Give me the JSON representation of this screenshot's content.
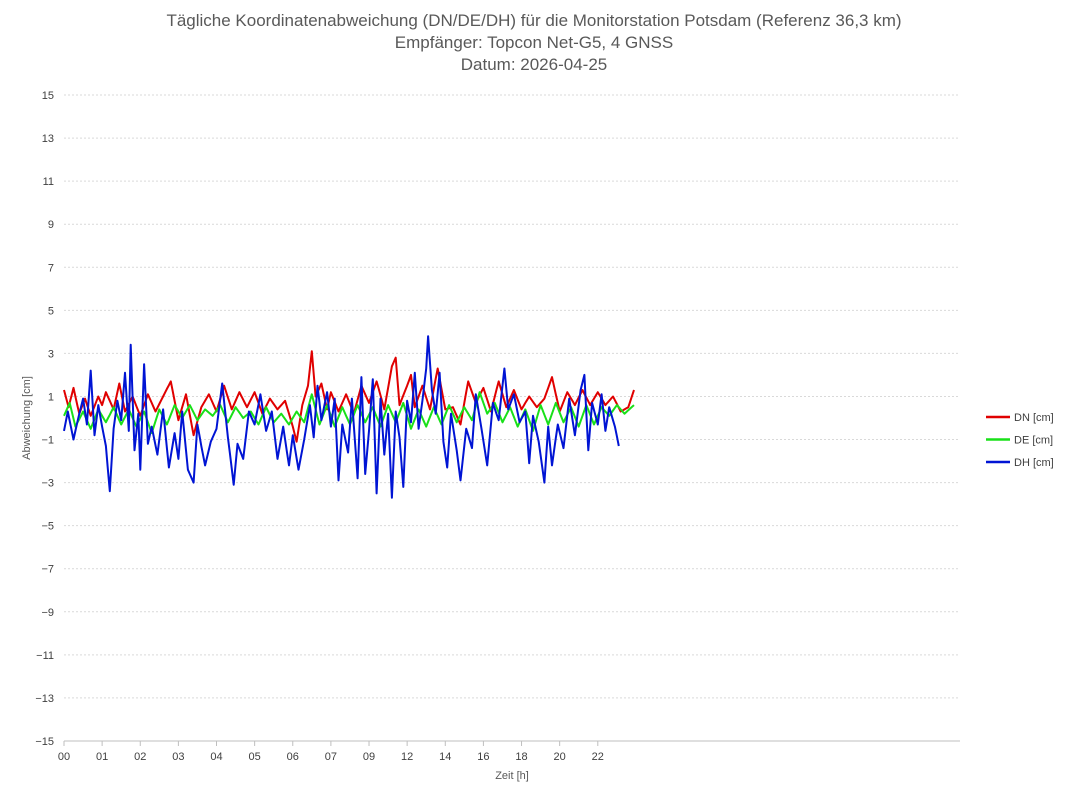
{
  "chart_data": {
    "type": "line",
    "title": "Tägliche Koordinatenabweichung (DN/DE/DH) für die Monitorstation Potsdam (Referenz 36,3 km)",
    "subtitle": "Empfänger: Topcon Net-G5, 4 GNSS",
    "subtitle2": "Datum: 2026-04-25",
    "xlabel": "Zeit [h]",
    "ylabel": "Abweichung [cm]",
    "xlim": [
      0,
      23.5
    ],
    "ylim": [
      -15,
      15
    ],
    "yticks": [
      -15,
      -13,
      -11,
      -9,
      -7,
      -5,
      -3,
      -1,
      1,
      3,
      5,
      7,
      9,
      11,
      13,
      15
    ],
    "xticks": [
      {
        "value": 0,
        "label": "00"
      },
      {
        "value": 1,
        "label": "01"
      },
      {
        "value": 2,
        "label": "02"
      },
      {
        "value": 3,
        "label": "03"
      },
      {
        "value": 4,
        "label": "04"
      },
      {
        "value": 5,
        "label": "05"
      },
      {
        "value": 6,
        "label": "06"
      },
      {
        "value": 7,
        "label": "07"
      },
      {
        "value": 8,
        "label": "09"
      },
      {
        "value": 9,
        "label": "12"
      },
      {
        "value": 10,
        "label": "14"
      },
      {
        "value": 11,
        "label": "16"
      },
      {
        "value": 12,
        "label": "18"
      },
      {
        "value": 13,
        "label": "20"
      },
      {
        "value": 14,
        "label": "22"
      }
    ],
    "grid": "horizontal-dotted",
    "legend": "right",
    "series": [
      {
        "name": "DN [cm]",
        "color": "#e00000",
        "anchors": [
          [
            0,
            1.3
          ],
          [
            0.12,
            0.5
          ],
          [
            0.25,
            1.4
          ],
          [
            0.4,
            0.2
          ],
          [
            0.55,
            0.9
          ],
          [
            0.7,
            0.1
          ],
          [
            0.9,
            1.0
          ],
          [
            1.0,
            0.6
          ],
          [
            1.1,
            1.2
          ],
          [
            1.3,
            0.4
          ],
          [
            1.45,
            1.6
          ],
          [
            1.6,
            0.3
          ],
          [
            1.8,
            1.0
          ],
          [
            2.0,
            0.1
          ],
          [
            2.2,
            1.1
          ],
          [
            2.4,
            0.3
          ],
          [
            2.6,
            1.0
          ],
          [
            2.8,
            1.7
          ],
          [
            3.0,
            -0.1
          ],
          [
            3.2,
            1.1
          ],
          [
            3.4,
            -0.8
          ],
          [
            3.6,
            0.5
          ],
          [
            3.8,
            1.1
          ],
          [
            4.0,
            0.3
          ],
          [
            4.2,
            1.5
          ],
          [
            4.4,
            0.4
          ],
          [
            4.6,
            1.2
          ],
          [
            4.8,
            0.5
          ],
          [
            5.0,
            1.2
          ],
          [
            5.2,
            0.2
          ],
          [
            5.4,
            0.9
          ],
          [
            5.6,
            0.4
          ],
          [
            5.8,
            0.8
          ],
          [
            6.0,
            -0.4
          ],
          [
            6.1,
            -1.1
          ],
          [
            6.25,
            0.6
          ],
          [
            6.4,
            1.5
          ],
          [
            6.5,
            3.1
          ],
          [
            6.6,
            1.0
          ],
          [
            6.75,
            1.6
          ],
          [
            6.9,
            0.4
          ],
          [
            7.0,
            1.2
          ],
          [
            7.2,
            0.3
          ],
          [
            7.4,
            1.1
          ],
          [
            7.6,
            0.2
          ],
          [
            7.8,
            1.5
          ],
          [
            8.0,
            0.7
          ],
          [
            8.2,
            1.7
          ],
          [
            8.4,
            0.4
          ],
          [
            8.6,
            2.4
          ],
          [
            8.7,
            2.8
          ],
          [
            8.8,
            0.6
          ],
          [
            9.0,
            1.5
          ],
          [
            9.1,
            2.0
          ],
          [
            9.2,
            0.5
          ],
          [
            9.4,
            1.5
          ],
          [
            9.6,
            0.4
          ],
          [
            9.8,
            2.3
          ],
          [
            10.0,
            0.4
          ],
          [
            10.2,
            0.5
          ],
          [
            10.4,
            -0.3
          ],
          [
            10.6,
            1.7
          ],
          [
            10.8,
            0.7
          ],
          [
            11.0,
            1.4
          ],
          [
            11.2,
            0.3
          ],
          [
            11.4,
            1.7
          ],
          [
            11.6,
            0.5
          ],
          [
            11.8,
            1.3
          ],
          [
            12.0,
            0.4
          ],
          [
            12.2,
            1.0
          ],
          [
            12.4,
            0.5
          ],
          [
            12.6,
            0.9
          ],
          [
            12.8,
            1.9
          ],
          [
            13.0,
            0.3
          ],
          [
            13.2,
            1.2
          ],
          [
            13.4,
            0.6
          ],
          [
            13.6,
            1.3
          ],
          [
            13.8,
            0.6
          ],
          [
            14.0,
            1.2
          ],
          [
            14.2,
            0.6
          ],
          [
            14.4,
            1.0
          ],
          [
            14.6,
            0.3
          ],
          [
            14.8,
            0.5
          ],
          [
            14.95,
            1.3
          ]
        ]
      },
      {
        "name": "DE [cm]",
        "color": "#19e019",
        "anchors": [
          [
            0,
            0.1
          ],
          [
            0.15,
            0.7
          ],
          [
            0.3,
            -0.4
          ],
          [
            0.5,
            0.3
          ],
          [
            0.7,
            -0.5
          ],
          [
            0.9,
            0.4
          ],
          [
            1.1,
            -0.2
          ],
          [
            1.3,
            0.5
          ],
          [
            1.5,
            -0.3
          ],
          [
            1.7,
            0.4
          ],
          [
            1.9,
            -0.4
          ],
          [
            2.1,
            0.3
          ],
          [
            2.3,
            -0.7
          ],
          [
            2.5,
            0.4
          ],
          [
            2.7,
            -0.3
          ],
          [
            2.9,
            0.6
          ],
          [
            3.1,
            0.0
          ],
          [
            3.3,
            0.6
          ],
          [
            3.5,
            -0.1
          ],
          [
            3.7,
            0.4
          ],
          [
            3.9,
            0.1
          ],
          [
            4.1,
            0.6
          ],
          [
            4.3,
            -0.2
          ],
          [
            4.5,
            0.5
          ],
          [
            4.7,
            0.0
          ],
          [
            4.9,
            0.3
          ],
          [
            5.1,
            -0.3
          ],
          [
            5.3,
            0.5
          ],
          [
            5.5,
            -0.2
          ],
          [
            5.7,
            0.2
          ],
          [
            5.9,
            -0.3
          ],
          [
            6.1,
            0.3
          ],
          [
            6.3,
            -0.2
          ],
          [
            6.5,
            1.1
          ],
          [
            6.7,
            -0.3
          ],
          [
            6.9,
            0.6
          ],
          [
            7.1,
            -0.4
          ],
          [
            7.3,
            0.5
          ],
          [
            7.5,
            -0.3
          ],
          [
            7.7,
            0.6
          ],
          [
            7.9,
            -0.2
          ],
          [
            8.1,
            0.5
          ],
          [
            8.3,
            -0.4
          ],
          [
            8.5,
            0.6
          ],
          [
            8.7,
            -0.2
          ],
          [
            8.9,
            0.7
          ],
          [
            9.1,
            -0.5
          ],
          [
            9.3,
            0.4
          ],
          [
            9.5,
            -0.4
          ],
          [
            9.7,
            0.5
          ],
          [
            9.9,
            -0.3
          ],
          [
            10.1,
            0.6
          ],
          [
            10.3,
            -0.2
          ],
          [
            10.5,
            0.5
          ],
          [
            10.7,
            -0.1
          ],
          [
            10.9,
            1.2
          ],
          [
            11.1,
            0.2
          ],
          [
            11.3,
            0.7
          ],
          [
            11.5,
            -0.2
          ],
          [
            11.7,
            0.5
          ],
          [
            11.9,
            -0.4
          ],
          [
            12.1,
            0.4
          ],
          [
            12.3,
            -0.6
          ],
          [
            12.5,
            0.6
          ],
          [
            12.7,
            -0.3
          ],
          [
            12.9,
            0.7
          ],
          [
            13.1,
            -0.2
          ],
          [
            13.3,
            0.5
          ],
          [
            13.5,
            -0.4
          ],
          [
            13.7,
            0.6
          ],
          [
            13.9,
            -0.3
          ],
          [
            14.1,
            0.5
          ],
          [
            14.3,
            0.1
          ],
          [
            14.5,
            0.6
          ],
          [
            14.7,
            0.2
          ],
          [
            14.95,
            0.6
          ]
        ]
      },
      {
        "name": "DH [cm]",
        "color": "#0014d4",
        "anchors": [
          [
            0,
            -0.6
          ],
          [
            0.1,
            0.3
          ],
          [
            0.25,
            -1.0
          ],
          [
            0.4,
            0.2
          ],
          [
            0.5,
            0.9
          ],
          [
            0.6,
            -0.3
          ],
          [
            0.7,
            2.2
          ],
          [
            0.8,
            -0.8
          ],
          [
            0.9,
            0.6
          ],
          [
            1.0,
            -0.4
          ],
          [
            1.1,
            -1.3
          ],
          [
            1.2,
            -3.4
          ],
          [
            1.3,
            -0.5
          ],
          [
            1.4,
            0.8
          ],
          [
            1.5,
            -0.1
          ],
          [
            1.6,
            2.1
          ],
          [
            1.7,
            -0.6
          ],
          [
            1.75,
            3.4
          ],
          [
            1.85,
            -1.5
          ],
          [
            1.95,
            0.2
          ],
          [
            2.0,
            -2.4
          ],
          [
            2.1,
            2.5
          ],
          [
            2.2,
            -1.2
          ],
          [
            2.3,
            -0.4
          ],
          [
            2.45,
            -1.7
          ],
          [
            2.6,
            0.4
          ],
          [
            2.75,
            -2.3
          ],
          [
            2.9,
            -0.7
          ],
          [
            3.0,
            -1.9
          ],
          [
            3.1,
            0.3
          ],
          [
            3.25,
            -2.4
          ],
          [
            3.4,
            -3.0
          ],
          [
            3.5,
            -0.3
          ],
          [
            3.6,
            -1.3
          ],
          [
            3.7,
            -2.2
          ],
          [
            3.85,
            -1.1
          ],
          [
            4.0,
            -0.5
          ],
          [
            4.15,
            1.6
          ],
          [
            4.3,
            -0.9
          ],
          [
            4.45,
            -3.1
          ],
          [
            4.55,
            -1.2
          ],
          [
            4.7,
            -1.9
          ],
          [
            4.85,
            0.3
          ],
          [
            5.0,
            -0.3
          ],
          [
            5.15,
            1.1
          ],
          [
            5.3,
            -0.6
          ],
          [
            5.45,
            0.3
          ],
          [
            5.6,
            -1.9
          ],
          [
            5.75,
            -0.4
          ],
          [
            5.9,
            -2.2
          ],
          [
            6.0,
            -0.8
          ],
          [
            6.15,
            -2.4
          ],
          [
            6.3,
            -1.0
          ],
          [
            6.45,
            0.6
          ],
          [
            6.55,
            -0.9
          ],
          [
            6.65,
            1.5
          ],
          [
            6.75,
            -0.1
          ],
          [
            6.9,
            1.2
          ],
          [
            7.0,
            -0.4
          ],
          [
            7.1,
            0.9
          ],
          [
            7.2,
            -2.9
          ],
          [
            7.3,
            -0.3
          ],
          [
            7.45,
            -1.6
          ],
          [
            7.55,
            0.9
          ],
          [
            7.7,
            -2.8
          ],
          [
            7.8,
            1.9
          ],
          [
            7.9,
            -2.6
          ],
          [
            8.0,
            -0.6
          ],
          [
            8.1,
            1.8
          ],
          [
            8.2,
            -3.5
          ],
          [
            8.3,
            0.9
          ],
          [
            8.4,
            -1.7
          ],
          [
            8.5,
            0.2
          ],
          [
            8.6,
            -3.7
          ],
          [
            8.7,
            0.3
          ],
          [
            8.8,
            -0.9
          ],
          [
            8.9,
            -3.2
          ],
          [
            9.0,
            0.8
          ],
          [
            9.1,
            -0.2
          ],
          [
            9.2,
            2.1
          ],
          [
            9.3,
            -0.5
          ],
          [
            9.4,
            0.8
          ],
          [
            9.5,
            2.3
          ],
          [
            9.55,
            3.8
          ],
          [
            9.65,
            1.3
          ],
          [
            9.75,
            0.2
          ],
          [
            9.85,
            2.1
          ],
          [
            9.95,
            -1.1
          ],
          [
            10.05,
            -2.3
          ],
          [
            10.15,
            0.2
          ],
          [
            10.3,
            -1.5
          ],
          [
            10.4,
            -2.9
          ],
          [
            10.55,
            -0.5
          ],
          [
            10.7,
            -1.4
          ],
          [
            10.8,
            1.1
          ],
          [
            10.95,
            -0.5
          ],
          [
            11.1,
            -2.2
          ],
          [
            11.25,
            0.7
          ],
          [
            11.4,
            -0.1
          ],
          [
            11.55,
            2.3
          ],
          [
            11.65,
            0.4
          ],
          [
            11.8,
            1.1
          ],
          [
            11.95,
            -0.2
          ],
          [
            12.1,
            0.3
          ],
          [
            12.2,
            -2.1
          ],
          [
            12.3,
            0.1
          ],
          [
            12.45,
            -1.1
          ],
          [
            12.6,
            -3.0
          ],
          [
            12.7,
            -0.4
          ],
          [
            12.8,
            -2.2
          ],
          [
            12.95,
            -0.3
          ],
          [
            13.1,
            -1.4
          ],
          [
            13.25,
            0.9
          ],
          [
            13.4,
            -0.8
          ],
          [
            13.55,
            1.3
          ],
          [
            13.65,
            2.0
          ],
          [
            13.75,
            -1.5
          ],
          [
            13.85,
            0.7
          ],
          [
            14.0,
            -0.3
          ],
          [
            14.1,
            1.1
          ],
          [
            14.2,
            -0.6
          ],
          [
            14.3,
            0.5
          ],
          [
            14.45,
            -0.4
          ],
          [
            14.55,
            -1.3
          ]
        ]
      }
    ]
  }
}
